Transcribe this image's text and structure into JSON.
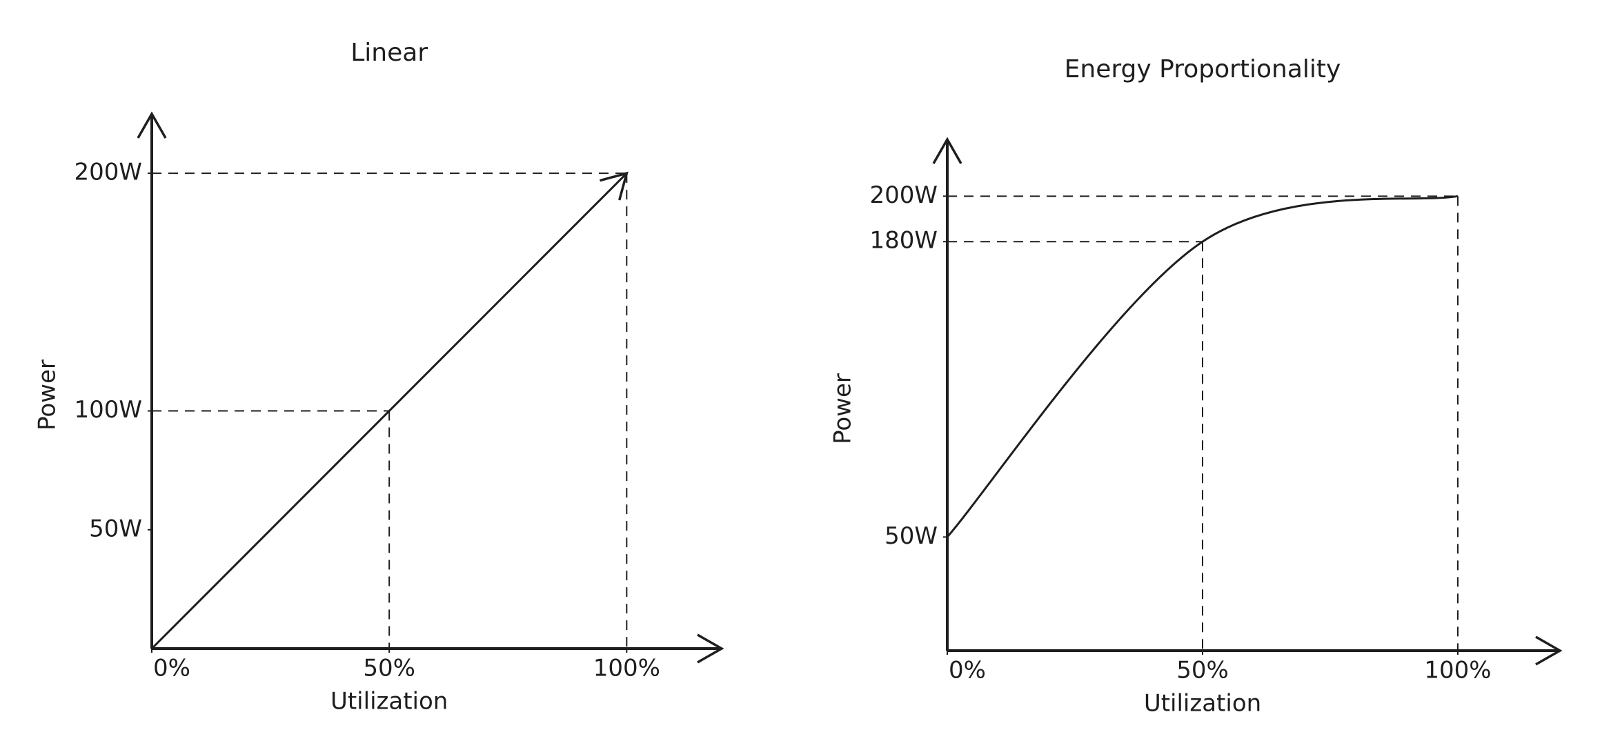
{
  "chart_data": [
    {
      "type": "line",
      "title": "Linear",
      "x_label": "Utilization",
      "y_label": "Power",
      "x": [
        0,
        50,
        100
      ],
      "series": [
        {
          "color": "#1e1e1e",
          "values": [
            0,
            100,
            200
          ]
        }
      ],
      "xlim": [
        0,
        120
      ],
      "ylim": [
        0,
        225
      ],
      "xticks": [
        {
          "value": 0,
          "label": "0%"
        },
        {
          "value": 50,
          "label": "50%"
        },
        {
          "value": 100,
          "label": "100%"
        }
      ],
      "yticks": [
        {
          "value": 50,
          "label": "50W"
        },
        {
          "value": 100,
          "label": "100W"
        },
        {
          "value": 200,
          "label": "200W"
        }
      ],
      "smooth": false,
      "end_arrow": true
    },
    {
      "type": "line",
      "title": "Energy Proportionality",
      "x_label": "Utilization",
      "y_label": "Power",
      "x": [
        0,
        50,
        100
      ],
      "series": [
        {
          "color": "#1e1e1e",
          "values": [
            50,
            180,
            200
          ]
        }
      ],
      "xlim": [
        0,
        120
      ],
      "ylim": [
        0,
        225
      ],
      "xticks": [
        {
          "value": 0,
          "label": "0%"
        },
        {
          "value": 50,
          "label": "50%"
        },
        {
          "value": 100,
          "label": "100%"
        }
      ],
      "yticks": [
        {
          "value": 50,
          "label": "50W"
        },
        {
          "value": 180,
          "label": "180W"
        },
        {
          "value": 200,
          "label": "200W"
        }
      ],
      "smooth": true,
      "end_arrow": false
    }
  ]
}
